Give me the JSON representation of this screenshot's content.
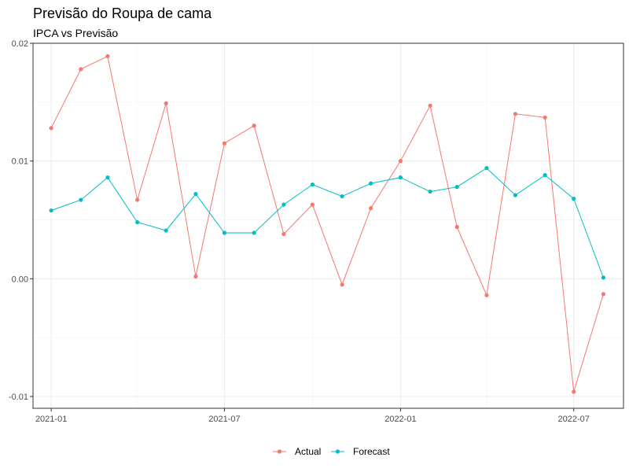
{
  "chart_data": {
    "type": "line",
    "title": "Previsão do Roupa de cama",
    "subtitle": "IPCA vs Previsão",
    "xlabel": "",
    "ylabel": "",
    "x": [
      "2021-01",
      "2021-02",
      "2021-03",
      "2021-04",
      "2021-05",
      "2021-06",
      "2021-07",
      "2021-08",
      "2021-09",
      "2021-10",
      "2021-11",
      "2021-12",
      "2022-01",
      "2022-02",
      "2022-03",
      "2022-04",
      "2022-05",
      "2022-06",
      "2022-07",
      "2022-08"
    ],
    "x_ticks": [
      "2021-01",
      "2021-07",
      "2022-01",
      "2022-07"
    ],
    "y_ticks": [
      -0.01,
      0.0,
      0.01,
      0.02
    ],
    "y_tick_labels": [
      "-0.01",
      "0.00",
      "0.01",
      "0.02"
    ],
    "xlim": [
      "2020-12-13",
      "2022-08-22"
    ],
    "ylim": [
      -0.011,
      0.02
    ],
    "grid": true,
    "legend_position": "bottom",
    "series": [
      {
        "name": "Actual",
        "color": "#F8766D",
        "values": [
          0.0128,
          0.0178,
          0.0189,
          0.0067,
          0.0149,
          0.0002,
          0.0115,
          0.013,
          0.0038,
          0.0063,
          -0.0005,
          0.006,
          0.01,
          0.0147,
          0.0044,
          -0.0014,
          0.014,
          0.0137,
          -0.0096,
          -0.0013
        ]
      },
      {
        "name": "Forecast",
        "color": "#00BFC4",
        "values": [
          0.0058,
          0.0067,
          0.0086,
          0.0048,
          0.0041,
          0.0072,
          0.0039,
          0.0039,
          0.0063,
          0.008,
          0.007,
          0.0081,
          0.0086,
          0.0074,
          0.0078,
          0.0094,
          0.0071,
          0.0088,
          0.0068,
          0.0001
        ]
      }
    ]
  }
}
